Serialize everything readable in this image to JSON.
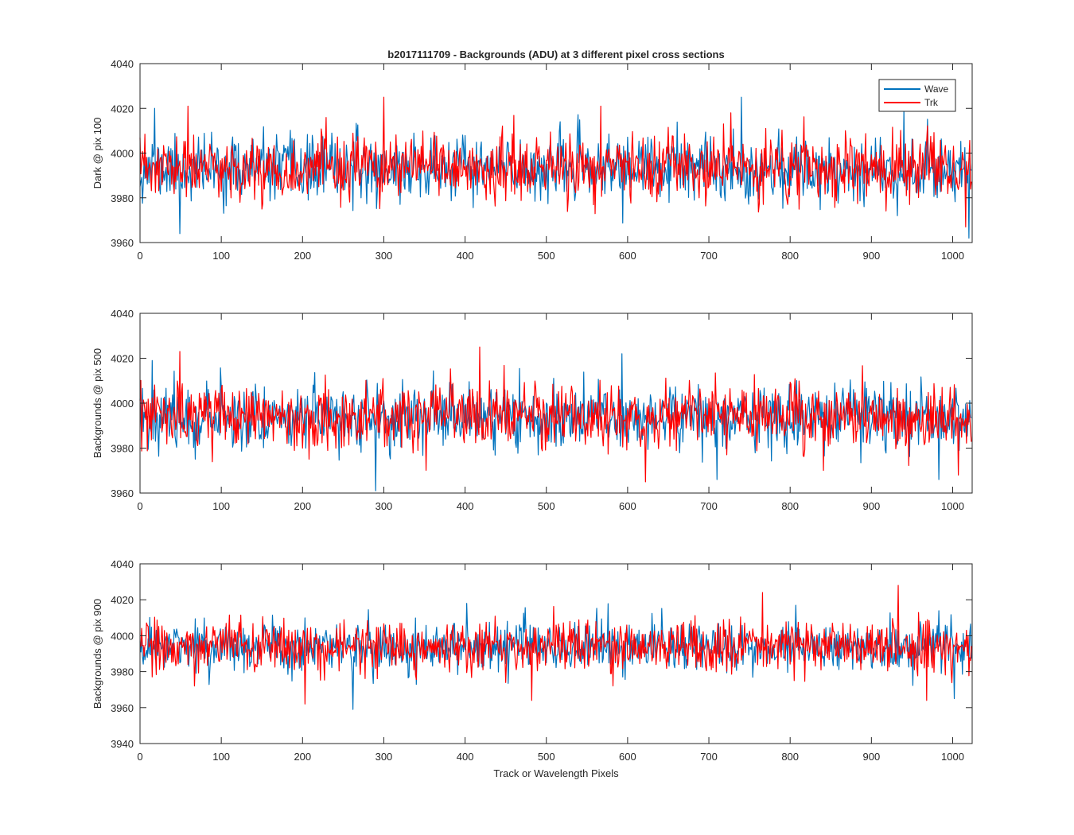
{
  "chart_data": {
    "type": "line",
    "title": "b2017111709 - Backgrounds (ADU) at 3 different pixel cross sections",
    "xlabel": "Track or Wavelength Pixels",
    "legend": {
      "placement": "top-right",
      "entries": [
        "Wave",
        "Trk"
      ]
    },
    "series_colors": {
      "Wave": "#0072BD",
      "Trk": "#FF0000"
    },
    "grid": false,
    "panels": [
      {
        "ylabel": "Dark @ pix 100",
        "xlim": [
          0,
          1024
        ],
        "ylim": [
          3960,
          4040
        ],
        "xticks": [
          0,
          100,
          200,
          300,
          400,
          500,
          600,
          700,
          800,
          900,
          1000
        ],
        "yticks": [
          3960,
          3980,
          4000,
          4020,
          4040
        ],
        "noise_model": {
          "n_points": 1024,
          "mean": 3993,
          "std": 7
        },
        "series": [
          {
            "name": "Wave",
            "seed": 11,
            "extremes": [
              [
                18,
                4020
              ],
              [
                49,
                3964
              ],
              [
                740,
                4025
              ],
              [
                932,
                3972
              ],
              [
                940,
                4020
              ],
              [
                1020,
                3962
              ]
            ]
          },
          {
            "name": "Trk",
            "seed": 23,
            "extremes": [
              [
                59,
                4021
              ],
              [
                300,
                4025
              ],
              [
                567,
                4021
              ],
              [
                727,
                4018
              ],
              [
                1016,
                3967
              ]
            ]
          }
        ]
      },
      {
        "ylabel": "Backgrounds @ pix 500",
        "xlim": [
          0,
          1024
        ],
        "ylim": [
          3960,
          4040
        ],
        "xticks": [
          0,
          100,
          200,
          300,
          400,
          500,
          600,
          700,
          800,
          900,
          1000
        ],
        "yticks": [
          3960,
          3980,
          4000,
          4020,
          4040
        ],
        "noise_model": {
          "n_points": 1024,
          "mean": 3994,
          "std": 7
        },
        "series": [
          {
            "name": "Wave",
            "seed": 37,
            "extremes": [
              [
                15,
                4019
              ],
              [
                290,
                3961
              ],
              [
                593,
                4022
              ],
              [
                710,
                3966
              ],
              [
                983,
                3966
              ]
            ]
          },
          {
            "name": "Trk",
            "seed": 53,
            "extremes": [
              [
                49,
                4023
              ],
              [
                418,
                4025
              ],
              [
                622,
                3965
              ],
              [
                1007,
                3968
              ]
            ]
          }
        ]
      },
      {
        "ylabel": "Backgrounds @ pix 900",
        "xlim": [
          0,
          1024
        ],
        "ylim": [
          3940,
          4040
        ],
        "xticks": [
          0,
          100,
          200,
          300,
          400,
          500,
          600,
          700,
          800,
          900,
          1000
        ],
        "yticks": [
          3940,
          3960,
          3980,
          4000,
          4020,
          4040
        ],
        "noise_model": {
          "n_points": 1024,
          "mean": 3994,
          "std": 7
        },
        "series": [
          {
            "name": "Wave",
            "seed": 71,
            "extremes": [
              [
                262,
                3959
              ],
              [
                402,
                4018
              ],
              [
                1002,
                3965
              ]
            ]
          },
          {
            "name": "Trk",
            "seed": 89,
            "extremes": [
              [
                203,
                3962
              ],
              [
                482,
                3964
              ],
              [
                766,
                4024
              ],
              [
                933,
                4028
              ],
              [
                968,
                3964
              ]
            ]
          }
        ]
      }
    ]
  }
}
